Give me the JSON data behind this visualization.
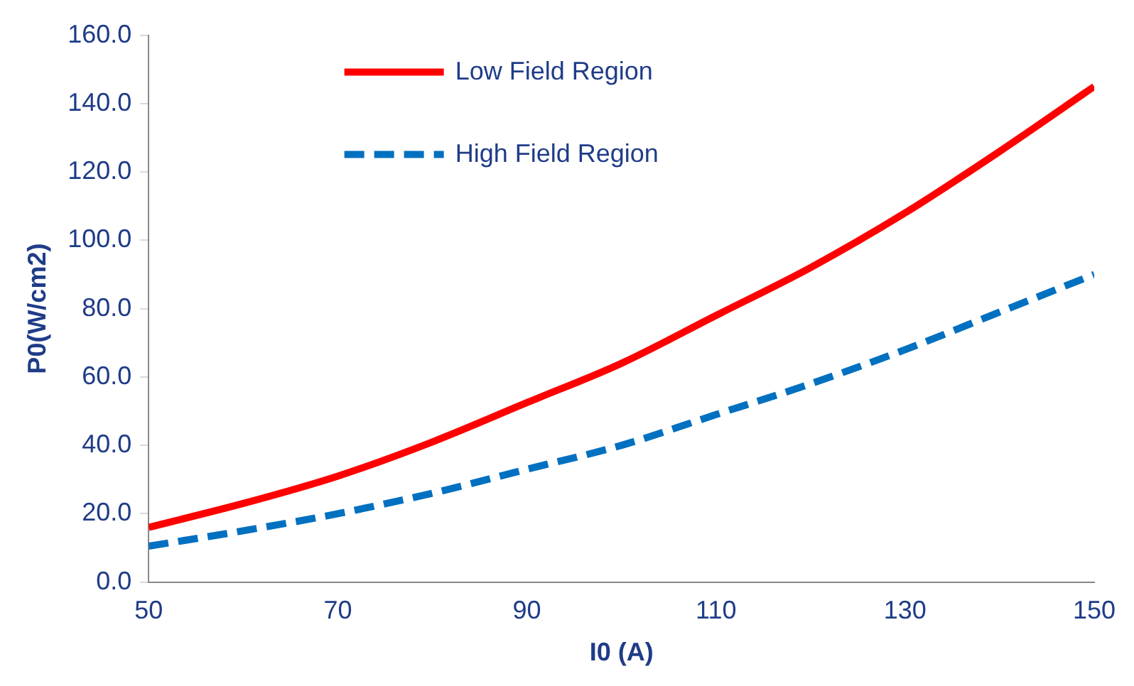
{
  "chart_data": {
    "type": "line",
    "xlabel": "I0 (A)",
    "ylabel": "P0(W/cm2)",
    "x": [
      50,
      60,
      70,
      80,
      90,
      100,
      110,
      120,
      130,
      140,
      150
    ],
    "series": [
      {
        "name": "Low Field Region",
        "color": "#ff0000",
        "line_style": "solid",
        "values": [
          16,
          23,
          31,
          41,
          52.5,
          64,
          78,
          92,
          108,
          126,
          145
        ]
      },
      {
        "name": "High Field Region",
        "color": "#0070c0",
        "line_style": "dashed",
        "values": [
          10.5,
          15,
          20,
          26,
          33,
          40,
          49,
          58,
          68,
          79,
          90
        ]
      }
    ],
    "xlim": [
      50,
      150
    ],
    "xticks": [
      50,
      70,
      90,
      110,
      130,
      150
    ],
    "ylim": [
      0,
      160
    ],
    "yticks": [
      {
        "value": 0,
        "label": "0.0"
      },
      {
        "value": 20,
        "label": "20.0"
      },
      {
        "value": 40,
        "label": "40.0"
      },
      {
        "value": 60,
        "label": "60.0"
      },
      {
        "value": 80,
        "label": "80.0"
      },
      {
        "value": 100,
        "label": "100.0"
      },
      {
        "value": 120,
        "label": "120.0"
      },
      {
        "value": 140,
        "label": "140.0"
      },
      {
        "value": 160,
        "label": "160.0"
      }
    ],
    "grid": false,
    "legend": "top",
    "marker": "none"
  }
}
